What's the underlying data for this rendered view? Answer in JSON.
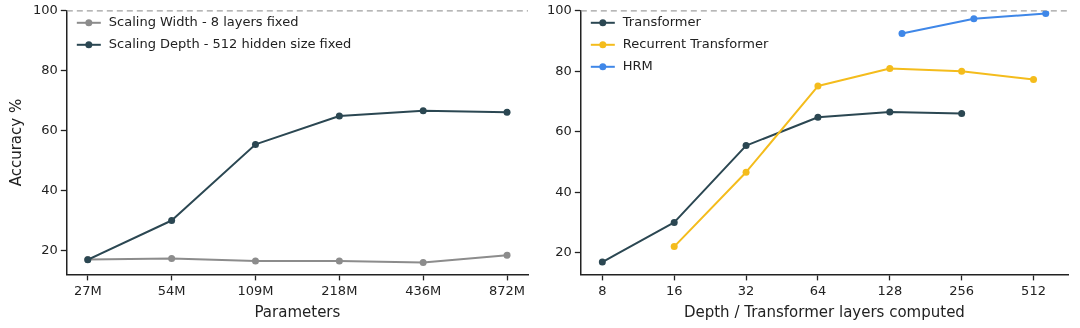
{
  "chart_data": [
    {
      "type": "line",
      "xlabel": "Parameters",
      "ylabel": "Accuracy %",
      "categories": [
        "27M",
        "54M",
        "109M",
        "218M",
        "436M",
        "872M"
      ],
      "series": [
        {
          "name": "Scaling Width - 8 layers fixed",
          "color": "#8c8c8c",
          "values": [
            17,
            17.3,
            16.5,
            16.5,
            16,
            18.4
          ]
        },
        {
          "name": "Scaling Depth - 512 hidden size fixed",
          "color": "#2b4752",
          "values": [
            16.9,
            30,
            55.4,
            64.9,
            66.6,
            66.1
          ]
        }
      ],
      "ylim": [
        12,
        100
      ],
      "yticks": [
        20,
        40,
        60,
        80,
        100
      ],
      "grid": false,
      "legend": "top left",
      "marker": "circle",
      "line_style": "solid",
      "ref_lines": [
        {
          "axis": "y",
          "value": 100,
          "color": "#a0a0a0",
          "line_style": "dashed"
        }
      ]
    },
    {
      "type": "line",
      "xlabel": "Depth / Transformer layers computed",
      "log": "x",
      "series": [
        {
          "name": "Transformer",
          "color": "#2b4752",
          "x": [
            8,
            16,
            32,
            64,
            128,
            256
          ],
          "values": [
            16.9,
            30,
            55.4,
            64.8,
            66.5,
            66
          ]
        },
        {
          "name": "Recurrent Transformer",
          "color": "#f4bc1c",
          "x": [
            16,
            32,
            64,
            128,
            256,
            512
          ],
          "values": [
            22,
            46.6,
            75.1,
            80.9,
            80,
            77.3
          ]
        },
        {
          "name": "HRM",
          "color": "#3f87e8",
          "x": [
            144,
            288,
            576
          ],
          "values": [
            92.5,
            97.4,
            99.1
          ]
        }
      ],
      "xlim": [
        6.5,
        714
      ],
      "xticks": [
        8,
        16,
        32,
        64,
        128,
        256,
        512
      ],
      "ylim": [
        12.8,
        100
      ],
      "yticks": [
        20,
        40,
        60,
        80,
        100
      ],
      "grid": false,
      "legend": "top left",
      "marker": "circle",
      "line_style": "solid",
      "ref_lines": [
        {
          "axis": "y",
          "value": 100,
          "color": "#a0a0a0",
          "line_style": "dashed"
        }
      ]
    }
  ]
}
